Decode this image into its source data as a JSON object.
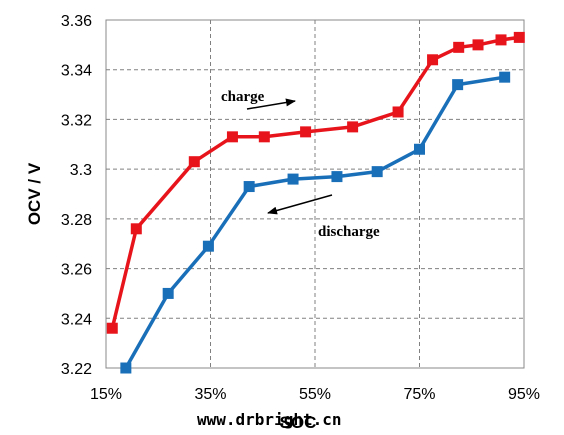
{
  "chart_data": {
    "type": "line",
    "title": "",
    "xlabel": "SOC",
    "ylabel": "OCV / V",
    "xlim": [
      15,
      95
    ],
    "ylim": [
      3.22,
      3.36
    ],
    "x_ticks": [
      15,
      35,
      55,
      75,
      95
    ],
    "x_tick_labels": [
      "15%",
      "35%",
      "55%",
      "75%",
      "95%"
    ],
    "y_ticks": [
      3.22,
      3.24,
      3.26,
      3.28,
      3.3,
      3.32,
      3.34,
      3.36
    ],
    "y_tick_labels": [
      "3.22",
      "3.24",
      "3.26",
      "3.28",
      "3.3",
      "3.32",
      "3.34",
      "3.36"
    ],
    "grid": true,
    "series": [
      {
        "color": "#e8141c",
        "marker": "square",
        "x": [
          16.2,
          20.8,
          31.9,
          39.2,
          45.3,
          53.2,
          62.2,
          70.9,
          77.5,
          82.5,
          86.2,
          90.6,
          94.1
        ],
        "y": [
          3.236,
          3.276,
          3.303,
          3.313,
          3.313,
          3.315,
          3.317,
          3.323,
          3.344,
          3.349,
          3.35,
          3.352,
          3.353
        ]
      },
      {
        "color": "#1a6fb9",
        "marker": "square",
        "x": [
          18.8,
          26.9,
          34.6,
          42.4,
          50.8,
          59.2,
          66.9,
          75.0,
          82.3,
          91.3
        ],
        "y": [
          3.22,
          3.25,
          3.269,
          3.293,
          3.296,
          3.297,
          3.299,
          3.308,
          3.334,
          3.337
        ]
      }
    ],
    "annotations": [
      {
        "text": "charge",
        "arrow": "right"
      },
      {
        "text": "discharge",
        "arrow": "left"
      }
    ]
  },
  "watermark": "www.drbright.cn"
}
